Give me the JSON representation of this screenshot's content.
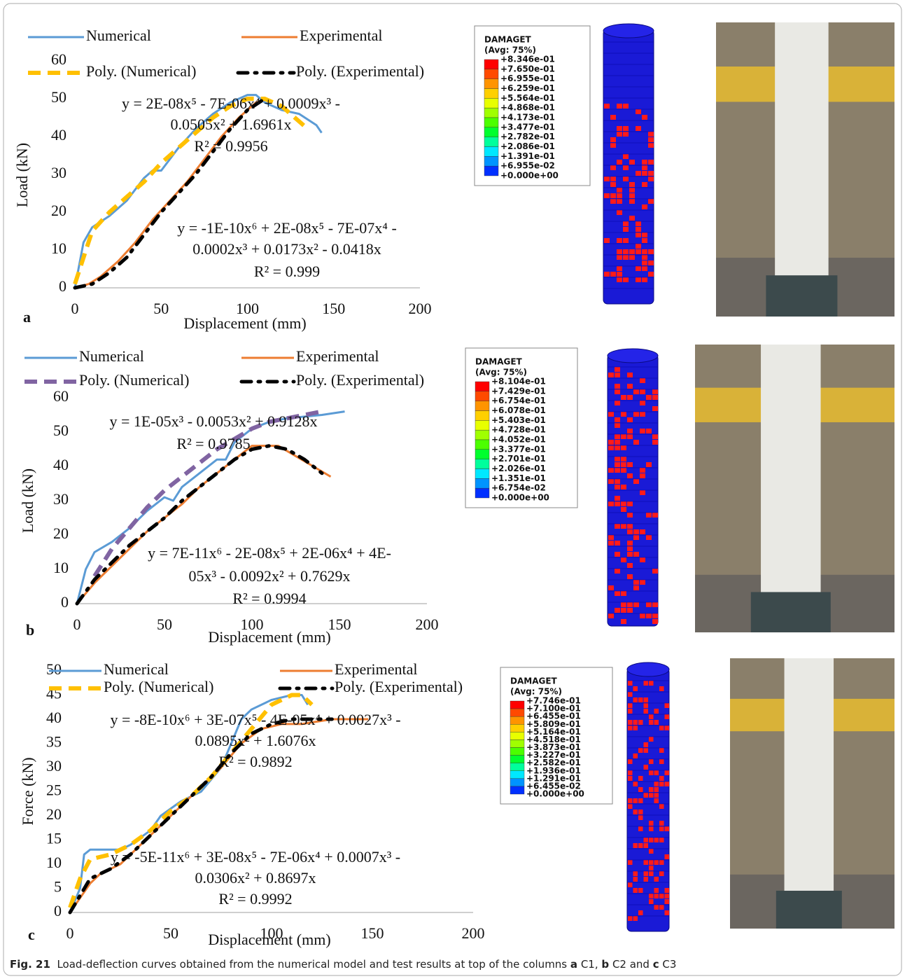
{
  "chart_data": [
    {
      "type": "line",
      "panel": "a",
      "x_label": "Displacement (mm)",
      "y_label": "Load (kN)",
      "xlim": [
        0,
        200
      ],
      "xticks": [
        0,
        50,
        100,
        150,
        200
      ],
      "ylim": [
        0,
        60
      ],
      "yticks": [
        0,
        10,
        20,
        30,
        40,
        50,
        60
      ],
      "series": [
        {
          "name": "Numerical",
          "color": "#5b9bd5",
          "style": "solid",
          "x": [
            0,
            5,
            10,
            20,
            30,
            40,
            45,
            50,
            60,
            70,
            80,
            90,
            100,
            105,
            110,
            120,
            130,
            140,
            143
          ],
          "values": [
            0,
            12,
            16,
            19,
            23,
            29,
            31,
            31,
            37,
            42,
            46,
            49,
            51,
            51,
            49,
            47,
            46,
            43,
            41
          ]
        },
        {
          "name": "Experimental",
          "color": "#ed7d31",
          "style": "solid",
          "x": [
            0,
            8,
            15,
            25,
            35,
            45,
            55,
            65,
            75,
            85,
            95,
            105,
            112
          ],
          "values": [
            0,
            1,
            3,
            7,
            12,
            18,
            23,
            28,
            34,
            40,
            45,
            49,
            50
          ]
        },
        {
          "name": "Poly. (Numerical)",
          "color": "#ffc000",
          "style": "dashed",
          "x": [
            0,
            10,
            20,
            30,
            40,
            50,
            60,
            70,
            80,
            90,
            100,
            110,
            120,
            130,
            135
          ],
          "values": [
            1,
            15,
            20,
            24,
            28,
            33,
            37,
            41,
            45,
            48,
            50,
            50,
            48,
            44,
            42
          ]
        },
        {
          "name": "Poly. (Experimental)",
          "color": "#000000",
          "style": "dashdot",
          "x": [
            0,
            10,
            20,
            30,
            40,
            50,
            60,
            70,
            80,
            90,
            100,
            110
          ],
          "values": [
            0,
            1,
            4,
            8,
            14,
            20,
            25,
            30,
            36,
            42,
            47,
            50
          ]
        }
      ],
      "equations": [
        [
          "y = 2E-08x⁵ - 7E-06x⁴ + 0.0009x³ -",
          "0.0505x² + 1.6961x",
          "R² = 0.9956"
        ],
        [
          "y = -1E-10x⁶ + 2E-08x⁵ - 7E-07x⁴ -",
          "0.0002x³ + 0.0173x² - 0.0418x",
          "R² = 0.999"
        ]
      ]
    },
    {
      "type": "line",
      "panel": "b",
      "x_label": "Displacement (mm)",
      "y_label": "Load (kN)",
      "xlim": [
        0,
        200
      ],
      "xticks": [
        0,
        50,
        100,
        150,
        200
      ],
      "ylim": [
        0,
        60
      ],
      "yticks": [
        0,
        10,
        20,
        30,
        40,
        50,
        60
      ],
      "series": [
        {
          "name": "Numerical",
          "color": "#5b9bd5",
          "style": "solid",
          "x": [
            0,
            5,
            10,
            20,
            30,
            40,
            50,
            55,
            60,
            70,
            80,
            85,
            90,
            100,
            110,
            120,
            140,
            153
          ],
          "values": [
            0,
            10,
            15,
            18,
            22,
            27,
            31,
            30,
            34,
            38,
            42,
            42,
            47,
            51,
            53,
            54,
            55,
            56
          ]
        },
        {
          "name": "Experimental",
          "color": "#ed7d31",
          "style": "solid",
          "x": [
            0,
            10,
            20,
            30,
            40,
            50,
            60,
            70,
            80,
            90,
            100,
            105,
            115,
            125,
            135,
            145
          ],
          "values": [
            0,
            6,
            11,
            16,
            21,
            25,
            29,
            34,
            38,
            42,
            46,
            46,
            46,
            43,
            40,
            37
          ]
        },
        {
          "name": "Poly. (Numerical)",
          "color": "#8064a2",
          "style": "dashed",
          "x": [
            10,
            20,
            30,
            40,
            50,
            60,
            70,
            80,
            90,
            100,
            110,
            120,
            130,
            140
          ],
          "values": [
            8,
            16,
            22,
            28,
            33,
            37,
            41,
            45,
            48,
            51,
            53,
            54,
            55,
            56
          ]
        },
        {
          "name": "Poly. (Experimental)",
          "color": "#000000",
          "style": "dashdot",
          "x": [
            0,
            10,
            20,
            30,
            40,
            50,
            60,
            70,
            80,
            90,
            100,
            110,
            120,
            130,
            140
          ],
          "values": [
            0,
            7,
            12,
            17,
            21,
            25,
            30,
            34,
            38,
            42,
            45,
            46,
            45,
            42,
            38
          ]
        }
      ],
      "equations": [
        [
          "y = 1E-05x³ - 0.0053x² + 0.9128x",
          "R² = 0.9785"
        ],
        [
          "y = 7E-11x⁶ - 2E-08x⁵ + 2E-06x⁴ + 4E-",
          "05x³ - 0.0092x² + 0.7629x",
          "R² = 0.9994"
        ]
      ]
    },
    {
      "type": "line",
      "panel": "c",
      "x_label": "Displacement (mm)",
      "y_label": "Force (kN)",
      "xlim": [
        0,
        200
      ],
      "xticks": [
        0,
        50,
        100,
        150,
        200
      ],
      "ylim": [
        0,
        50
      ],
      "yticks": [
        0,
        5,
        10,
        15,
        20,
        25,
        30,
        35,
        40,
        45,
        50
      ],
      "series": [
        {
          "name": "Numerical",
          "color": "#5b9bd5",
          "style": "solid",
          "x": [
            0,
            5,
            7,
            10,
            20,
            25,
            30,
            40,
            45,
            55,
            65,
            75,
            80,
            85,
            90,
            100,
            110,
            115,
            118
          ],
          "values": [
            0,
            5,
            12,
            13,
            13,
            13,
            14,
            17,
            20,
            23,
            25,
            30,
            35,
            40,
            42,
            44,
            45,
            45,
            43
          ]
        },
        {
          "name": "Experimental",
          "color": "#ed7d31",
          "style": "solid",
          "x": [
            0,
            5,
            10,
            15,
            25,
            35,
            45,
            55,
            65,
            75,
            85,
            95,
            105,
            115,
            130,
            148
          ],
          "values": [
            0,
            3,
            6,
            8,
            10,
            14,
            18,
            22,
            26,
            30,
            35,
            38,
            39,
            39,
            40,
            40
          ]
        },
        {
          "name": "Poly. (Numerical)",
          "color": "#ffc000",
          "style": "dashed",
          "x": [
            0,
            5,
            10,
            20,
            30,
            40,
            50,
            60,
            70,
            80,
            90,
            100,
            110,
            115,
            120
          ],
          "values": [
            1,
            7,
            11,
            12,
            14,
            17,
            21,
            24,
            28,
            33,
            38,
            43,
            45,
            45,
            43
          ]
        },
        {
          "name": "Poly. (Experimental)",
          "color": "#000000",
          "style": "dashdot",
          "x": [
            0,
            10,
            20,
            30,
            40,
            50,
            60,
            70,
            80,
            90,
            100,
            110,
            120,
            130
          ],
          "values": [
            0,
            7,
            9,
            12,
            16,
            20,
            24,
            28,
            33,
            37,
            39,
            40,
            40,
            40
          ]
        }
      ],
      "equations": [
        [
          "y = -8E-10x⁶ + 3E-07x⁵ - 4E-05x⁴ + 0.0027x³ -",
          "0.0895x² + 1.6076x",
          "R² = 0.9892"
        ],
        [
          "y = -5E-11x⁶ + 3E-08x⁵ - 7E-06x⁴ + 0.0007x³ -",
          "0.0306x² + 0.8697x",
          "R² = 0.9992"
        ]
      ]
    }
  ],
  "contour_legends": [
    {
      "title": "DAMAGET",
      "subtitle": "(Avg: 75%)",
      "labels": [
        "+8.346e-01",
        "+7.650e-01",
        "+6.955e-01",
        "+6.259e-01",
        "+5.564e-01",
        "+4.868e-01",
        "+4.173e-01",
        "+3.477e-01",
        "+2.782e-01",
        "+2.086e-01",
        "+1.391e-01",
        "+6.955e-02",
        "+0.000e+00"
      ]
    },
    {
      "title": "DAMAGET",
      "subtitle": "(Avg: 75%)",
      "labels": [
        "+8.104e-01",
        "+7.429e-01",
        "+6.754e-01",
        "+6.078e-01",
        "+5.403e-01",
        "+4.728e-01",
        "+4.052e-01",
        "+3.377e-01",
        "+2.701e-01",
        "+2.026e-01",
        "+1.351e-01",
        "+6.754e-02",
        "+0.000e+00"
      ]
    },
    {
      "title": "DAMAGET",
      "subtitle": "(Avg: 75%)",
      "labels": [
        "+7.746e-01",
        "+7.100e-01",
        "+6.455e-01",
        "+5.809e-01",
        "+5.164e-01",
        "+4.518e-01",
        "+3.873e-01",
        "+3.227e-01",
        "+2.582e-01",
        "+1.936e-01",
        "+1.291e-01",
        "+6.455e-02",
        "+0.000e+00"
      ]
    }
  ],
  "caption": {
    "label": "Fig. 21",
    "parts": [
      "Load-deflection curves obtained from the numerical model and test results at top of the columns",
      "a",
      "C1,",
      "b",
      "C2 and",
      "c",
      "C3"
    ]
  }
}
